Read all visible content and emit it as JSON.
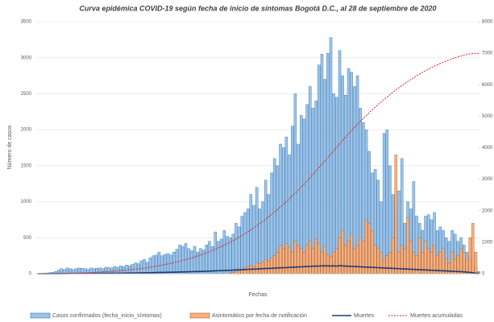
{
  "chart_data": {
    "type": "bar",
    "title": "Curva epidémica COVID-19 según fecha de inicio de síntomas Bogotá D.C., al 28 de septiembre de 2020",
    "x_label": "Fechas",
    "y_label": "Número de casos",
    "ylim": [
      0,
      3500
    ],
    "yticks": [
      0,
      500,
      1000,
      1500,
      2000,
      2500,
      3000,
      3500
    ],
    "y2lim": [
      0,
      8000
    ],
    "y2ticks": [
      0,
      1000,
      2000,
      3000,
      4000,
      5000,
      6000,
      7000,
      8000
    ],
    "series": [
      {
        "name": "Casos confirmados (fecha_inicio_síntomas)",
        "type": "bar",
        "color": "#9dc3e6",
        "values": [
          0,
          2,
          5,
          10,
          15,
          20,
          30,
          50,
          70,
          60,
          80,
          70,
          60,
          70,
          80,
          75,
          70,
          60,
          80,
          70,
          75,
          80,
          70,
          90,
          85,
          80,
          100,
          90,
          110,
          100,
          120,
          110,
          130,
          150,
          140,
          180,
          200,
          160,
          220,
          250,
          260,
          300,
          250,
          270,
          280,
          260,
          300,
          340,
          400,
          380,
          420,
          350,
          320,
          380,
          300,
          350,
          330,
          400,
          450,
          380,
          580,
          450,
          480,
          600,
          520,
          500,
          550,
          700,
          650,
          800,
          850,
          900,
          1100,
          950,
          1200,
          900,
          1000,
          1300,
          1100,
          1400,
          1600,
          1500,
          1800,
          1750,
          1900,
          1650,
          2050,
          2500,
          1800,
          2200,
          2150,
          2350,
          2600,
          2300,
          2400,
          2900,
          3050,
          2700,
          3060,
          3280,
          2500,
          2450,
          3100,
          2750,
          2480,
          2850,
          2800,
          2600,
          2750,
          2300,
          2100,
          2000,
          1700,
          1400,
          1450,
          1300,
          1000,
          1950,
          2000,
          1500,
          1100,
          900,
          1150,
          1600,
          700,
          1000,
          900,
          1280,
          800,
          700,
          600,
          800,
          820,
          750,
          850,
          600,
          650,
          600,
          500,
          450,
          600,
          550,
          450,
          500,
          400,
          300,
          250,
          200,
          100,
          30
        ]
      },
      {
        "name": "Asintomático por fecha de notificación",
        "type": "bar",
        "color": "#f4b183",
        "values": [
          0,
          0,
          0,
          0,
          0,
          0,
          0,
          0,
          0,
          0,
          0,
          0,
          0,
          0,
          0,
          0,
          0,
          0,
          0,
          0,
          0,
          0,
          0,
          0,
          0,
          0,
          0,
          0,
          0,
          0,
          0,
          0,
          0,
          0,
          0,
          0,
          0,
          0,
          0,
          0,
          0,
          0,
          0,
          0,
          0,
          0,
          0,
          0,
          0,
          0,
          0,
          0,
          0,
          0,
          0,
          0,
          0,
          0,
          0,
          0,
          0,
          0,
          0,
          0,
          0,
          10,
          20,
          30,
          40,
          60,
          80,
          100,
          120,
          100,
          150,
          140,
          160,
          200,
          180,
          220,
          250,
          300,
          400,
          350,
          420,
          380,
          300,
          450,
          400,
          350,
          300,
          400,
          450,
          350,
          480,
          420,
          300,
          380,
          260,
          240,
          300,
          350,
          500,
          600,
          400,
          450,
          550,
          350,
          400,
          500,
          450,
          750,
          700,
          600,
          400,
          350,
          300,
          200,
          250,
          300,
          500,
          1650,
          300,
          400,
          350,
          780,
          450,
          300,
          250,
          500,
          300,
          450,
          350,
          300,
          400,
          250,
          300,
          350,
          200,
          150,
          300,
          200,
          250,
          350,
          300,
          200,
          500,
          700,
          300,
          20
        ]
      },
      {
        "name": "Muertes",
        "type": "line",
        "color": "#1f3b73",
        "values": [
          0,
          0,
          0,
          0,
          0,
          0,
          1,
          1,
          2,
          2,
          2,
          3,
          3,
          3,
          4,
          4,
          3,
          4,
          5,
          4,
          5,
          5,
          6,
          5,
          6,
          6,
          7,
          7,
          8,
          8,
          9,
          9,
          10,
          10,
          11,
          12,
          12,
          13,
          14,
          15,
          16,
          17,
          18,
          18,
          20,
          20,
          22,
          22,
          24,
          25,
          26,
          27,
          28,
          30,
          30,
          32,
          33,
          35,
          36,
          38,
          40,
          42,
          44,
          45,
          47,
          48,
          50,
          52,
          54,
          55,
          58,
          60,
          62,
          64,
          65,
          68,
          70,
          72,
          74,
          75,
          78,
          80,
          82,
          84,
          85,
          88,
          90,
          92,
          94,
          95,
          98,
          100,
          102,
          104,
          105,
          106,
          108,
          110,
          108,
          106,
          110,
          105,
          112,
          108,
          106,
          104,
          102,
          100,
          98,
          96,
          94,
          92,
          90,
          88,
          86,
          84,
          82,
          80,
          78,
          76,
          74,
          72,
          70,
          68,
          66,
          64,
          62,
          60,
          58,
          56,
          54,
          52,
          50,
          48,
          46,
          44,
          42,
          40,
          38,
          36,
          34,
          32,
          30,
          28,
          26,
          22,
          18,
          12,
          6,
          0
        ]
      },
      {
        "name": "Muertes acumuladas",
        "type": "line",
        "axis": "y2",
        "dashed": true,
        "color": "#e02020",
        "values": [
          0,
          0,
          0,
          0,
          0,
          1,
          2,
          3,
          5,
          7,
          9,
          12,
          15,
          18,
          22,
          26,
          29,
          33,
          38,
          42,
          47,
          52,
          58,
          63,
          69,
          75,
          82,
          89,
          97,
          105,
          114,
          123,
          133,
          143,
          154,
          166,
          178,
          191,
          205,
          220,
          236,
          253,
          271,
          289,
          309,
          329,
          351,
          373,
          397,
          422,
          448,
          475,
          503,
          533,
          563,
          595,
          628,
          663,
          699,
          737,
          777,
          819,
          863,
          908,
          955,
          1003,
          1053,
          1105,
          1159,
          1214,
          1272,
          1332,
          1394,
          1458,
          1523,
          1591,
          1661,
          1733,
          1807,
          1882,
          1960,
          2040,
          2122,
          2206,
          2291,
          2379,
          2469,
          2561,
          2655,
          2750,
          2848,
          2948,
          3050,
          3154,
          3259,
          3365,
          3473,
          3583,
          3691,
          3797,
          3907,
          4012,
          4124,
          4232,
          4338,
          4442,
          4544,
          4644,
          4742,
          4838,
          4932,
          5024,
          5114,
          5202,
          5288,
          5372,
          5454,
          5534,
          5612,
          5688,
          5762,
          5834,
          5904,
          5972,
          6038,
          6102,
          6164,
          6224,
          6282,
          6338,
          6392,
          6444,
          6494,
          6542,
          6588,
          6632,
          6674,
          6714,
          6752,
          6788,
          6822,
          6854,
          6884,
          6912,
          6938,
          6960,
          6978,
          6990,
          6996,
          6996
        ]
      }
    ]
  }
}
